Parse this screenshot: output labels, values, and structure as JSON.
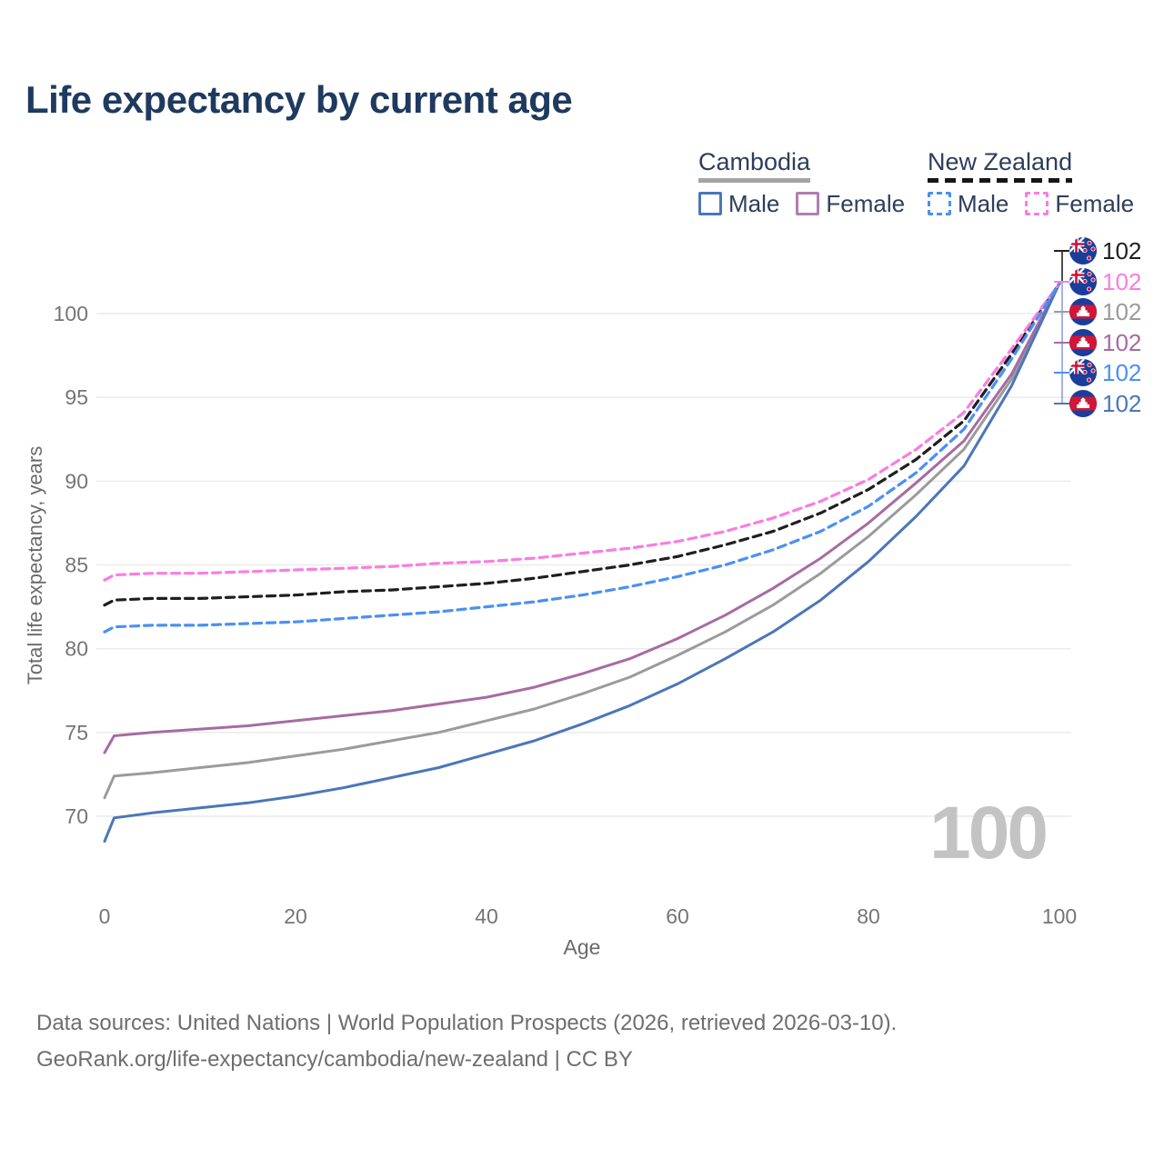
{
  "title": "Life expectancy by current age",
  "watermark_age": "100",
  "footer": {
    "line1": "Data sources: United Nations | World Population Prospects (2026, retrieved 2026-03-10).",
    "line2": "GeoRank.org/life-expectancy/cambodia/new-zealand | CC BY"
  },
  "legend": {
    "groups": [
      {
        "label": "Cambodia",
        "line_style": "solid",
        "underline_color": "#a3a3a3",
        "items": [
          {
            "label": "Male",
            "color": "#4b76ba"
          },
          {
            "label": "Female",
            "color": "#b07fad"
          }
        ]
      },
      {
        "label": "New Zealand",
        "line_style": "dashed",
        "underline_color": "#161616",
        "items": [
          {
            "label": "Male",
            "color": "#4a90f5"
          },
          {
            "label": "Female",
            "color": "#fa7de0"
          }
        ]
      }
    ]
  },
  "chart_data": {
    "type": "line",
    "title": "Life expectancy by current age",
    "xlabel": "Age",
    "ylabel": "Total life expectancy, years",
    "xlim": [
      0,
      100
    ],
    "ylim": [
      68,
      102.5
    ],
    "x_ticks": [
      0,
      20,
      40,
      60,
      80,
      100
    ],
    "y_ticks": [
      70,
      75,
      80,
      85,
      90,
      95,
      100
    ],
    "grid": "horizontal-only",
    "legend_position": "top-right",
    "x": [
      0,
      1,
      5,
      10,
      15,
      20,
      25,
      30,
      35,
      40,
      45,
      50,
      55,
      60,
      65,
      70,
      75,
      80,
      85,
      90,
      95,
      100
    ],
    "series": [
      {
        "name": "New Zealand — Both sexes",
        "country": "New Zealand",
        "sex": "both",
        "color": "#1f1f1f",
        "dashed": true,
        "flag": "nz",
        "end_label": "102",
        "values": [
          82.6,
          82.9,
          83.0,
          83.0,
          83.1,
          83.2,
          83.4,
          83.5,
          83.7,
          83.9,
          84.2,
          84.6,
          85.0,
          85.5,
          86.2,
          87.0,
          88.1,
          89.5,
          91.3,
          93.6,
          97.6,
          101.8
        ]
      },
      {
        "name": "New Zealand — Female",
        "country": "New Zealand",
        "sex": "female",
        "color": "#fa7de0",
        "dashed": true,
        "flag": "nz",
        "end_label": "102",
        "values": [
          84.1,
          84.4,
          84.5,
          84.5,
          84.6,
          84.7,
          84.8,
          84.9,
          85.1,
          85.2,
          85.4,
          85.7,
          86.0,
          86.4,
          87.0,
          87.8,
          88.8,
          90.1,
          91.9,
          94.1,
          97.9,
          101.8
        ]
      },
      {
        "name": "Cambodia — Both sexes",
        "country": "Cambodia",
        "sex": "both",
        "color": "#9b9b9b",
        "dashed": false,
        "flag": "kh",
        "end_label": "102",
        "values": [
          71.1,
          72.4,
          72.6,
          72.9,
          73.2,
          73.6,
          74.0,
          74.5,
          75.0,
          75.7,
          76.4,
          77.3,
          78.3,
          79.6,
          81.0,
          82.6,
          84.5,
          86.7,
          89.2,
          91.9,
          96.1,
          101.8
        ]
      },
      {
        "name": "Cambodia — Female",
        "country": "Cambodia",
        "sex": "female",
        "color": "#a76ba2",
        "dashed": false,
        "flag": "kh",
        "end_label": "102",
        "values": [
          73.8,
          74.8,
          75.0,
          75.2,
          75.4,
          75.7,
          76.0,
          76.3,
          76.7,
          77.1,
          77.7,
          78.5,
          79.4,
          80.6,
          82.0,
          83.6,
          85.4,
          87.5,
          89.9,
          92.4,
          96.4,
          101.8
        ]
      },
      {
        "name": "New Zealand — Male",
        "country": "New Zealand",
        "sex": "male",
        "color": "#4a90f5",
        "dashed": true,
        "flag": "nz",
        "end_label": "102",
        "values": [
          81.0,
          81.3,
          81.4,
          81.4,
          81.5,
          81.6,
          81.8,
          82.0,
          82.2,
          82.5,
          82.8,
          83.2,
          83.7,
          84.3,
          85.0,
          85.9,
          87.0,
          88.5,
          90.5,
          93.1,
          97.3,
          101.8
        ]
      },
      {
        "name": "Cambodia — Male",
        "country": "Cambodia",
        "sex": "male",
        "color": "#4b76ba",
        "dashed": false,
        "flag": "kh",
        "end_label": "102",
        "values": [
          68.5,
          69.9,
          70.2,
          70.5,
          70.8,
          71.2,
          71.7,
          72.3,
          72.9,
          73.7,
          74.5,
          75.5,
          76.6,
          77.9,
          79.4,
          81.0,
          82.9,
          85.2,
          87.9,
          90.9,
          95.7,
          101.8
        ]
      }
    ]
  }
}
